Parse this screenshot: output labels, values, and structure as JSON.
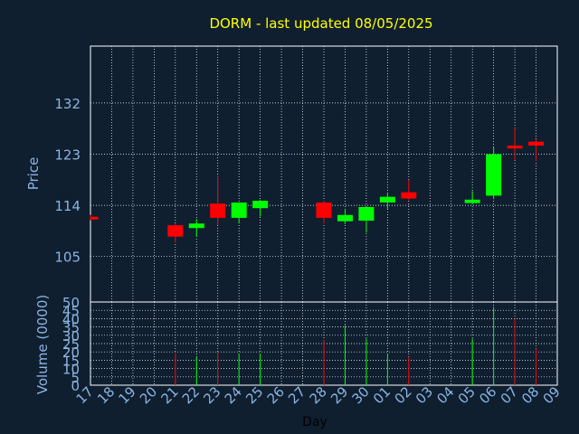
{
  "chart_data": {
    "type": "candlestick",
    "title": "DORM - last updated 08/05/2025",
    "xlabel": "Day",
    "ylabel": "Price",
    "volume_label": "Volume (0000)",
    "grid": true,
    "price_ylim": [
      97,
      142
    ],
    "price_ticks": [
      "105",
      "114",
      "123",
      "132"
    ],
    "volume_ylim": [
      0,
      50
    ],
    "volume_ticks": [
      "0",
      "5",
      "10",
      "15",
      "20",
      "25",
      "30",
      "35",
      "40",
      "45",
      "50"
    ],
    "x_ticks": [
      "17",
      "18",
      "19",
      "20",
      "21",
      "22",
      "23",
      "24",
      "25",
      "26",
      "27",
      "28",
      "29",
      "30",
      "01",
      "02",
      "03",
      "04",
      "05",
      "06",
      "07",
      "08",
      "09"
    ],
    "colors": {
      "up": "#00ff00",
      "down": "#ff0000",
      "text": "#8cb4e0",
      "title": "#ffff00",
      "background": "#0f1f30",
      "grid": "#ffffff"
    },
    "candles": [
      {
        "day": "17",
        "open": 112.0,
        "high": 112.3,
        "low": 111.4,
        "close": 111.5,
        "volume": 0
      },
      {
        "day": "21",
        "open": 110.5,
        "high": 110.8,
        "low": 107.5,
        "close": 108.5,
        "volume": 19
      },
      {
        "day": "22",
        "open": 110.0,
        "high": 111.6,
        "low": 108.5,
        "close": 110.8,
        "volume": 17
      },
      {
        "day": "23",
        "open": 114.3,
        "high": 119.3,
        "low": 110.5,
        "close": 111.8,
        "volume": 20
      },
      {
        "day": "24",
        "open": 111.8,
        "high": 114.5,
        "low": 110.8,
        "close": 114.5,
        "volume": 19
      },
      {
        "day": "25",
        "open": 113.5,
        "high": 115.0,
        "low": 112.0,
        "close": 114.8,
        "volume": 19
      },
      {
        "day": "28",
        "open": 114.5,
        "high": 114.8,
        "low": 110.8,
        "close": 111.8,
        "volume": 27
      },
      {
        "day": "29",
        "open": 111.2,
        "high": 113.4,
        "low": 110.7,
        "close": 112.3,
        "volume": 36
      },
      {
        "day": "30",
        "open": 111.3,
        "high": 113.7,
        "low": 109.2,
        "close": 113.7,
        "volume": 28
      },
      {
        "day": "01",
        "open": 114.5,
        "high": 116.2,
        "low": 113.4,
        "close": 115.5,
        "volume": 19
      },
      {
        "day": "02",
        "open": 116.3,
        "high": 118.5,
        "low": 114.9,
        "close": 115.2,
        "volume": 17
      },
      {
        "day": "05",
        "open": 114.4,
        "high": 116.5,
        "low": 114.2,
        "close": 115.0,
        "volume": 28
      },
      {
        "day": "06",
        "open": 115.7,
        "high": 124.2,
        "low": 115.1,
        "close": 123.0,
        "volume": 47
      },
      {
        "day": "07",
        "open": 124.5,
        "high": 127.6,
        "low": 122.0,
        "close": 124.0,
        "volume": 40
      },
      {
        "day": "08",
        "open": 125.2,
        "high": 125.6,
        "low": 121.8,
        "close": 124.5,
        "volume": 22
      }
    ]
  }
}
